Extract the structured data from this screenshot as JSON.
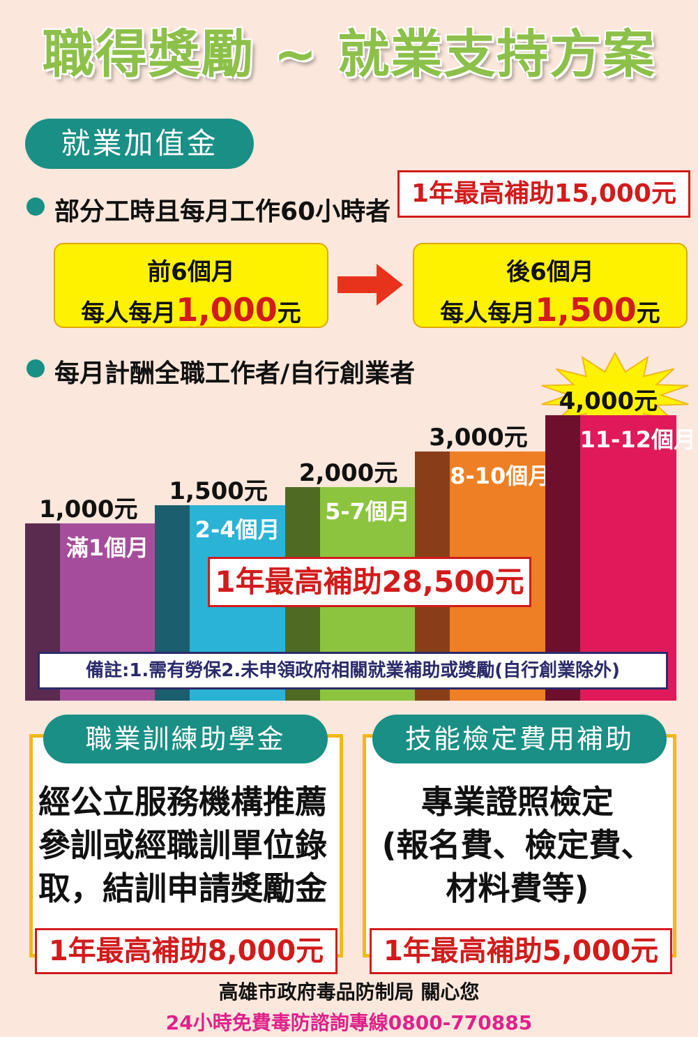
{
  "title": "職得獎勵 ~ 就業支持方案",
  "section1": {
    "pill": "就業加值金",
    "part_time": {
      "label": "部分工時且每月工作60小時者",
      "cap": "1年最高補助15,000元",
      "first": {
        "period": "前6個月",
        "prefix": "每人每月",
        "amount": "1,000",
        "suffix": "元"
      },
      "second": {
        "period": "後6個月",
        "prefix": "每人每月",
        "amount": "1,500",
        "suffix": "元"
      }
    },
    "full_time": {
      "label": "每月計酬全職工作者/自行創業者",
      "cap": "1年最高補助28,500元",
      "note": "備註:1.需有勞保2.未申領政府相關就業補助或獎勵(自行創業除外)",
      "colors": {
        "step1": "#a54d9b",
        "step2": "#2bb3d6",
        "step3": "#8cc43f",
        "step4": "#ee7f24",
        "step5": "#e01a5a"
      }
    }
  },
  "chart_data": {
    "type": "bar",
    "categories": [
      "滿1個月",
      "2-4個月",
      "5-7個月",
      "8-10個月",
      "11-12個月"
    ],
    "values": [
      1000,
      1500,
      2000,
      3000,
      4000
    ],
    "value_labels": [
      "1,000元",
      "1,500元",
      "2,000元",
      "3,000元",
      "4,000元"
    ]
  },
  "training": {
    "heading": "職業訓練助學金",
    "lines": [
      "經公立服務機構推薦",
      "參訓或經職訓單位錄",
      "取，結訓申請獎勵金"
    ],
    "cap": "1年最高補助8,000元"
  },
  "certification": {
    "heading": "技能檢定費用補助",
    "lines": [
      "專業證照檢定",
      "(報名費、檢定費、",
      "材料費等)"
    ],
    "cap": "1年最高補助5,000元"
  },
  "footer": {
    "org": "高雄市政府毒品防制局 關心您",
    "hotline": "24小時免費毒防諮詢專線0800-770885"
  }
}
